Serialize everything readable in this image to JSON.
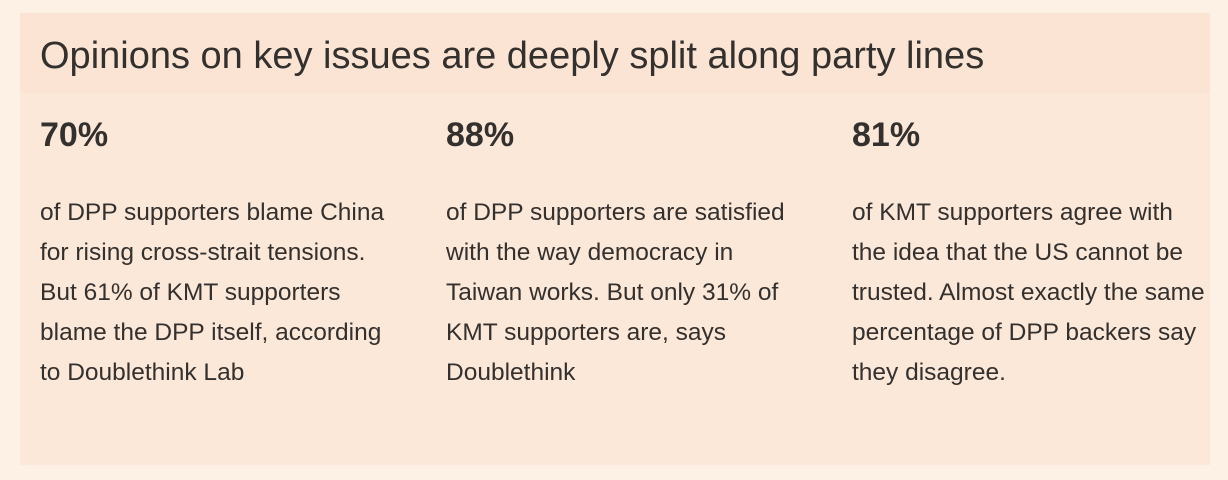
{
  "title": "Opinions on key issues are deeply split along party lines",
  "stats": [
    {
      "value": "70%",
      "text": "of DPP supporters blame China for rising cross-strait tensions. But 61% of KMT supporters blame the DPP itself, according to Doublethink Lab"
    },
    {
      "value": "88%",
      "text": "of DPP supporters are satisfied with the way democracy in Taiwan works. But only 31% of KMT supporters are, says Doublethink"
    },
    {
      "value": "81%",
      "text": "of KMT supporters agree with the idea that the US cannot be trusted. Almost exactly the same percentage of DPP backers say they disagree."
    }
  ]
}
